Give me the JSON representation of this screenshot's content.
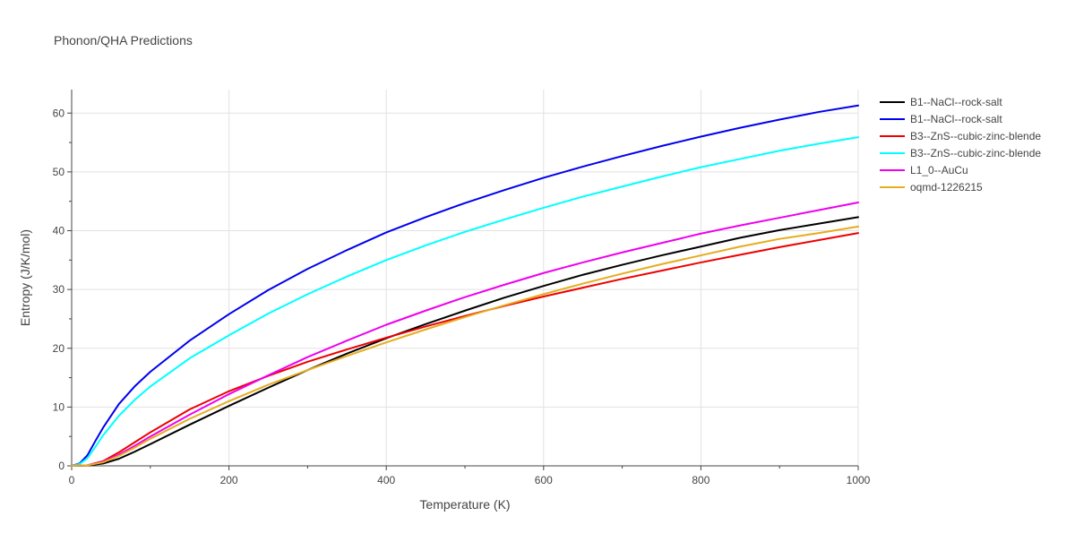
{
  "chart_data": {
    "type": "line",
    "title": "Phonon/QHA Predictions",
    "xlabel": "Temperature (K)",
    "ylabel": "Entropy (J/K/mol)",
    "xlim": [
      0,
      1000
    ],
    "ylim": [
      0,
      64
    ],
    "xticks": [
      0,
      200,
      400,
      600,
      800,
      1000
    ],
    "yticks": [
      0,
      10,
      20,
      30,
      40,
      50,
      60
    ],
    "grid": true,
    "legend_position": "top-right",
    "series": [
      {
        "name": "B1--NaCl--rock-salt",
        "color": "#000000",
        "x": [
          0,
          20,
          40,
          60,
          80,
          100,
          150,
          200,
          250,
          300,
          350,
          400,
          450,
          500,
          550,
          600,
          650,
          700,
          750,
          800,
          850,
          900,
          950,
          1000
        ],
        "y": [
          0,
          0.05,
          0.4,
          1.2,
          2.4,
          3.7,
          7.0,
          10.2,
          13.3,
          16.3,
          19.1,
          21.7,
          24.1,
          26.4,
          28.6,
          30.6,
          32.5,
          34.2,
          35.8,
          37.3,
          38.8,
          40.1,
          41.2,
          42.3
        ]
      },
      {
        "name": "B1--NaCl--rock-salt",
        "color": "#0000ee",
        "x": [
          0,
          10,
          20,
          30,
          40,
          60,
          80,
          100,
          150,
          200,
          250,
          300,
          350,
          400,
          450,
          500,
          550,
          600,
          650,
          700,
          750,
          800,
          850,
          900,
          950,
          1000
        ],
        "y": [
          0,
          0.4,
          1.8,
          4.2,
          6.5,
          10.5,
          13.5,
          16.0,
          21.3,
          25.8,
          29.9,
          33.5,
          36.7,
          39.7,
          42.3,
          44.7,
          46.9,
          49.0,
          50.9,
          52.7,
          54.4,
          56.0,
          57.5,
          58.9,
          60.2,
          61.3
        ]
      },
      {
        "name": "B3--ZnS--cubic-zinc-blende",
        "color": "#ee0000",
        "x": [
          0,
          20,
          40,
          60,
          80,
          100,
          150,
          200,
          250,
          300,
          350,
          400,
          450,
          500,
          550,
          600,
          650,
          700,
          750,
          800,
          850,
          900,
          950,
          1000
        ],
        "y": [
          0,
          0.1,
          0.8,
          2.3,
          4.0,
          5.7,
          9.6,
          12.7,
          15.3,
          17.7,
          19.8,
          21.8,
          23.7,
          25.5,
          27.2,
          28.8,
          30.3,
          31.8,
          33.2,
          34.6,
          35.9,
          37.2,
          38.4,
          39.6
        ]
      },
      {
        "name": "B3--ZnS--cubic-zinc-blende",
        "color": "#00ffff",
        "x": [
          0,
          10,
          20,
          30,
          40,
          60,
          80,
          100,
          150,
          200,
          250,
          300,
          350,
          400,
          450,
          500,
          550,
          600,
          650,
          700,
          750,
          800,
          850,
          900,
          950,
          1000
        ],
        "y": [
          0,
          0.3,
          1.3,
          3.2,
          5.2,
          8.5,
          11.2,
          13.5,
          18.3,
          22.2,
          25.9,
          29.2,
          32.2,
          35.0,
          37.5,
          39.8,
          41.9,
          43.9,
          45.8,
          47.5,
          49.2,
          50.8,
          52.2,
          53.6,
          54.8,
          55.9
        ]
      },
      {
        "name": "L1_0--AuCu",
        "color": "#ee00ee",
        "x": [
          0,
          20,
          40,
          60,
          80,
          100,
          150,
          200,
          250,
          300,
          350,
          400,
          450,
          500,
          550,
          600,
          650,
          700,
          750,
          800,
          850,
          900,
          950,
          1000
        ],
        "y": [
          0,
          0.1,
          0.7,
          1.9,
          3.4,
          5.0,
          8.7,
          12.2,
          15.4,
          18.5,
          21.3,
          24.0,
          26.4,
          28.7,
          30.8,
          32.8,
          34.6,
          36.3,
          37.9,
          39.5,
          40.9,
          42.2,
          43.5,
          44.8
        ]
      },
      {
        "name": "oqmd-1226215",
        "color": "#e6ac1e",
        "x": [
          0,
          20,
          40,
          60,
          80,
          100,
          150,
          200,
          250,
          300,
          350,
          400,
          450,
          500,
          550,
          600,
          650,
          700,
          750,
          800,
          850,
          900,
          950,
          1000
        ],
        "y": [
          0,
          0.1,
          0.6,
          1.7,
          3.1,
          4.6,
          8.0,
          11.0,
          13.8,
          16.3,
          18.7,
          21.0,
          23.2,
          25.3,
          27.3,
          29.2,
          31.0,
          32.7,
          34.3,
          35.8,
          37.3,
          38.6,
          39.6,
          40.7
        ]
      }
    ]
  }
}
